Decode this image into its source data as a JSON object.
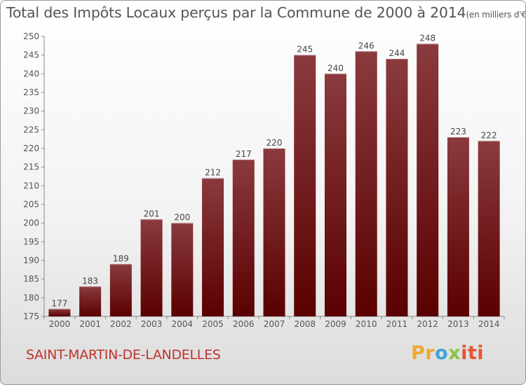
{
  "title": "Total des Impôts Locaux perçus par la Commune de 2000 à 2014",
  "unit": "(en milliers d'€)",
  "commune": "SAINT-MARTIN-DE-LANDELLES",
  "logo": {
    "part1": "Pr",
    "part2": "o",
    "part3": "x",
    "part4": "iti"
  },
  "colors": {
    "bar_top": "#8a3a3e",
    "bar_bottom": "#5a0000",
    "commune": "#c0332b"
  },
  "chart_data": {
    "type": "bar",
    "title": "Total des Impôts Locaux perçus par la Commune de 2000 à 2014",
    "xlabel": "",
    "ylabel": "en milliers d'€",
    "categories": [
      "2000",
      "2001",
      "2002",
      "2003",
      "2004",
      "2005",
      "2006",
      "2007",
      "2008",
      "2009",
      "2010",
      "2011",
      "2012",
      "2013",
      "2014"
    ],
    "values": [
      177,
      183,
      189,
      201,
      200,
      212,
      217,
      220,
      245,
      240,
      246,
      244,
      248,
      223,
      222
    ],
    "ylim": [
      175,
      250
    ],
    "yticks": [
      175,
      180,
      185,
      190,
      195,
      200,
      205,
      210,
      215,
      220,
      225,
      230,
      235,
      240,
      245,
      250
    ],
    "grid": false
  }
}
